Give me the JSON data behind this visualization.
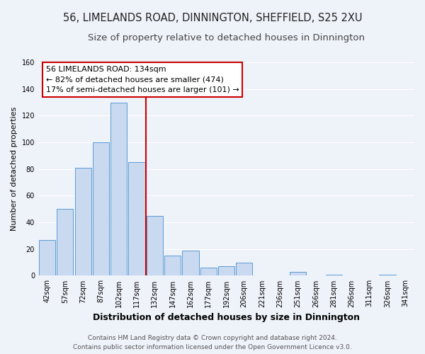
{
  "title": "56, LIMELANDS ROAD, DINNINGTON, SHEFFIELD, S25 2XU",
  "subtitle": "Size of property relative to detached houses in Dinnington",
  "xlabel": "Distribution of detached houses by size in Dinnington",
  "ylabel": "Number of detached properties",
  "bar_labels": [
    "42sqm",
    "57sqm",
    "72sqm",
    "87sqm",
    "102sqm",
    "117sqm",
    "132sqm",
    "147sqm",
    "162sqm",
    "177sqm",
    "192sqm",
    "206sqm",
    "221sqm",
    "236sqm",
    "251sqm",
    "266sqm",
    "281sqm",
    "296sqm",
    "311sqm",
    "326sqm",
    "341sqm"
  ],
  "bar_heights": [
    27,
    50,
    81,
    100,
    130,
    85,
    45,
    15,
    19,
    6,
    7,
    10,
    0,
    0,
    3,
    0,
    1,
    0,
    0,
    1,
    0
  ],
  "bar_color": "#c8d9f0",
  "bar_edge_color": "#5b9bd5",
  "vline_x_idx": 6,
  "vline_color": "#cc0000",
  "ylim": [
    0,
    160
  ],
  "yticks": [
    0,
    20,
    40,
    60,
    80,
    100,
    120,
    140,
    160
  ],
  "annotation_title": "56 LIMELANDS ROAD: 134sqm",
  "annotation_line1": "← 82% of detached houses are smaller (474)",
  "annotation_line2": "17% of semi-detached houses are larger (101) →",
  "annotation_box_color": "#ffffff",
  "annotation_box_edge": "#cc0000",
  "footer_line1": "Contains HM Land Registry data © Crown copyright and database right 2024.",
  "footer_line2": "Contains public sector information licensed under the Open Government Licence v3.0.",
  "background_color": "#eef2f9",
  "grid_color": "#ffffff",
  "title_fontsize": 10.5,
  "subtitle_fontsize": 9.5,
  "xlabel_fontsize": 9,
  "ylabel_fontsize": 8,
  "tick_fontsize": 7,
  "annotation_fontsize": 8,
  "footer_fontsize": 6.5
}
